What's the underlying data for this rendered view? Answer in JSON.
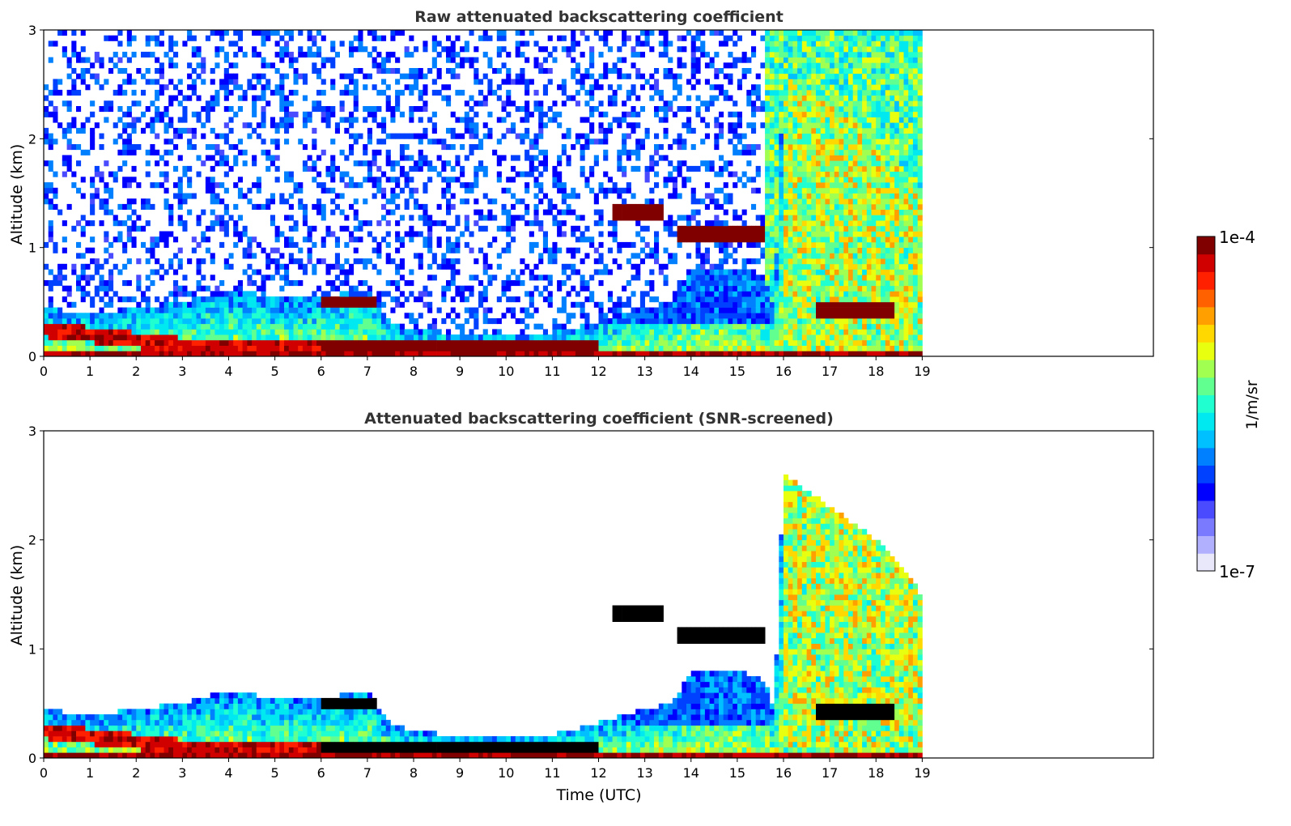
{
  "chart_data": [
    {
      "type": "heatmap",
      "title": "Raw attenuated backscattering coefficient",
      "xlabel": "",
      "ylabel": "Altitude (km)",
      "xlim": [
        0,
        24
      ],
      "ylim": [
        0,
        3
      ],
      "xticks": [
        "0",
        "1",
        "2",
        "3",
        "4",
        "5",
        "6",
        "7",
        "8",
        "9",
        "10",
        "11",
        "12",
        "13",
        "14",
        "15",
        "16",
        "17",
        "18",
        "19"
      ],
      "yticks": [
        "0",
        "1",
        "2",
        "3"
      ],
      "screened": false
    },
    {
      "type": "heatmap",
      "title": "Attenuated backscattering coefficient (SNR-screened)",
      "xlabel": "Time (UTC)",
      "ylabel": "Altitude (km)",
      "xlim": [
        0,
        24
      ],
      "ylim": [
        0,
        3
      ],
      "xticks": [
        "0",
        "1",
        "2",
        "3",
        "4",
        "5",
        "6",
        "7",
        "8",
        "9",
        "10",
        "11",
        "12",
        "13",
        "14",
        "15",
        "16",
        "17",
        "18",
        "19"
      ],
      "yticks": [
        "0",
        "1",
        "2",
        "3"
      ],
      "screened": true
    }
  ],
  "field": {
    "data_end_hour": 19,
    "boundary_layer_top_km": [
      [
        0,
        0.45
      ],
      [
        1,
        0.38
      ],
      [
        2,
        0.45
      ],
      [
        3,
        0.5
      ],
      [
        4,
        0.62
      ],
      [
        5,
        0.55
      ],
      [
        6,
        0.55
      ],
      [
        7,
        0.62
      ],
      [
        7.5,
        0.3
      ],
      [
        8,
        0.25
      ],
      [
        9,
        0.2
      ],
      [
        10,
        0.2
      ],
      [
        11,
        0.22
      ],
      [
        12,
        0.32
      ],
      [
        12.6,
        0.4
      ],
      [
        13,
        0.45
      ],
      [
        13.6,
        0.5
      ],
      [
        14,
        0.8
      ],
      [
        15,
        0.8
      ],
      [
        15.6,
        0.7
      ],
      [
        15.8,
        0.4
      ],
      [
        16,
        2.6
      ],
      [
        17,
        2.3
      ],
      [
        18,
        2.0
      ],
      [
        19,
        1.5
      ]
    ],
    "cloud_layers": [
      {
        "start": 12.3,
        "end": 13.4,
        "base_km": 1.27,
        "top_km": 1.4
      },
      {
        "start": 13.7,
        "end": 15.6,
        "base_km": 1.05,
        "top_km": 1.18
      },
      {
        "start": 16.7,
        "end": 18.4,
        "base_km": 0.35,
        "top_km": 0.48
      },
      {
        "start": 6.0,
        "end": 7.2,
        "base_km": 0.45,
        "top_km": 0.56
      },
      {
        "start": 6.0,
        "end": 12.0,
        "base_km": 0.05,
        "top_km": 0.14
      }
    ],
    "aerosol_band": [
      [
        0,
        0.25
      ],
      [
        1,
        0.2
      ],
      [
        2,
        0.15
      ],
      [
        3,
        0.1
      ],
      [
        5,
        0.08
      ]
    ],
    "log10_range": [
      -7,
      -4
    ]
  },
  "colorbar": {
    "label": "1/m/sr",
    "max_label": "1e-4",
    "min_label": "1e-7",
    "colors": [
      "#e8e8fa",
      "#b0b0ff",
      "#7a7aff",
      "#4a4aff",
      "#0000ff",
      "#0040ff",
      "#0080ff",
      "#00c0ff",
      "#00e8f0",
      "#20ffd0",
      "#60ff90",
      "#a0ff50",
      "#e8ff10",
      "#ffd800",
      "#ffa000",
      "#ff6000",
      "#ff2000",
      "#d00000",
      "#800000"
    ]
  }
}
